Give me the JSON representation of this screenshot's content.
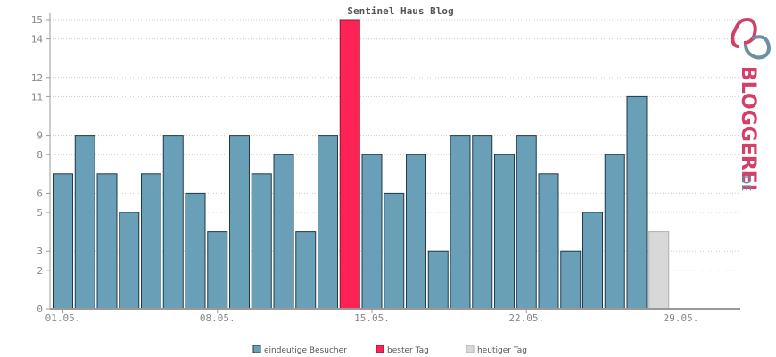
{
  "chart_data": {
    "type": "bar",
    "title": "Sentinel Haus Blog",
    "y_ticks": [
      0,
      2,
      3,
      5,
      6,
      8,
      9,
      11,
      12,
      14,
      15
    ],
    "ylim": [
      0,
      15
    ],
    "x_ticks": [
      {
        "index": 1,
        "label": "01.05."
      },
      {
        "index": 8,
        "label": "08.05."
      },
      {
        "index": 15,
        "label": "15.05."
      },
      {
        "index": 22,
        "label": "22.05."
      },
      {
        "index": 29,
        "label": "29.05."
      }
    ],
    "days": [
      1,
      2,
      3,
      4,
      5,
      6,
      7,
      8,
      9,
      10,
      11,
      12,
      13,
      14,
      15,
      16,
      17,
      18,
      19,
      20,
      21,
      22,
      23,
      24,
      25,
      26,
      27,
      28
    ],
    "values": [
      7,
      9,
      7,
      5,
      7,
      9,
      6,
      4,
      9,
      7,
      8,
      4,
      9,
      15,
      8,
      6,
      8,
      3,
      9,
      9,
      8,
      9,
      7,
      3,
      5,
      8,
      11,
      4
    ],
    "best_day": 14,
    "today": 28,
    "grid": true,
    "legend_position": "bottom",
    "series": [
      {
        "name": "eindeutige Besucher",
        "color": "#6a9fb8"
      },
      {
        "name": "bester Tag",
        "color": "#ff2255"
      },
      {
        "name": "heutiger Tag",
        "color": "#d8d8d8"
      }
    ]
  },
  "logo": {
    "text_main": "BLOGGEREI",
    "text_suffix": ".DE",
    "colors": {
      "pink": "#d2406a",
      "blue": "#6a8fa8",
      "gray": "#999999"
    }
  }
}
